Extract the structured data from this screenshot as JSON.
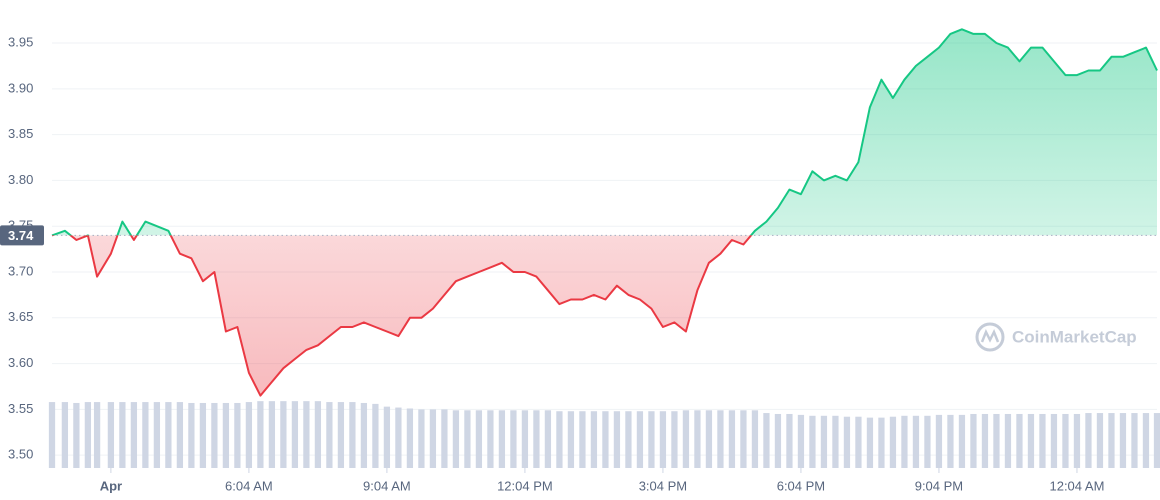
{
  "chart_data": {
    "type": "line",
    "baseline": 3.74,
    "baseline_label": "3.74",
    "watermark": "CoinMarketCap",
    "colors": {
      "up": "#16c784",
      "down": "#ea3943",
      "volume": "#cfd6e4"
    },
    "x": [
      -1.28,
      -1,
      -0.75,
      -0.5,
      -0.3,
      0,
      0.25,
      0.5,
      0.75,
      1,
      1.25,
      1.5,
      1.75,
      2,
      2.25,
      2.5,
      2.75,
      3,
      3.25,
      3.5,
      3.75,
      4,
      4.25,
      4.5,
      4.75,
      5,
      5.25,
      5.5,
      5.75,
      6,
      6.25,
      6.5,
      6.75,
      7,
      7.25,
      7.5,
      7.75,
      8,
      8.25,
      8.5,
      8.75,
      9,
      9.25,
      9.5,
      9.75,
      10,
      10.25,
      10.5,
      10.75,
      11,
      11.25,
      11.5,
      11.75,
      12,
      12.25,
      12.5,
      12.75,
      13,
      13.25,
      13.5,
      13.75,
      14,
      14.25,
      14.5,
      14.75,
      15,
      15.25,
      15.5,
      15.75,
      16,
      16.25,
      16.5,
      16.75,
      17,
      17.25,
      17.5,
      17.75,
      18,
      18.25,
      18.5,
      18.75,
      19,
      19.25,
      19.5,
      19.75,
      20,
      20.25,
      20.5,
      20.75,
      21,
      21.25,
      21.5,
      21.75,
      22,
      22.25,
      22.5,
      22.74
    ],
    "values": [
      3.74,
      3.745,
      3.735,
      3.74,
      3.695,
      3.72,
      3.755,
      3.735,
      3.755,
      3.75,
      3.745,
      3.72,
      3.715,
      3.69,
      3.7,
      3.635,
      3.64,
      3.59,
      3.565,
      3.58,
      3.595,
      3.605,
      3.615,
      3.62,
      3.63,
      3.64,
      3.64,
      3.645,
      3.64,
      3.635,
      3.63,
      3.65,
      3.65,
      3.66,
      3.675,
      3.69,
      3.695,
      3.7,
      3.705,
      3.71,
      3.7,
      3.7,
      3.695,
      3.68,
      3.665,
      3.67,
      3.67,
      3.675,
      3.67,
      3.685,
      3.675,
      3.67,
      3.66,
      3.64,
      3.645,
      3.635,
      3.68,
      3.71,
      3.72,
      3.735,
      3.73,
      3.745,
      3.755,
      3.77,
      3.79,
      3.785,
      3.81,
      3.8,
      3.805,
      3.8,
      3.82,
      3.88,
      3.91,
      3.89,
      3.91,
      3.925,
      3.935,
      3.945,
      3.96,
      3.965,
      3.96,
      3.96,
      3.95,
      3.945,
      3.93,
      3.945,
      3.945,
      3.93,
      3.915,
      3.915,
      3.92,
      3.92,
      3.935,
      3.935,
      3.94,
      3.945,
      3.92
    ],
    "volume": {
      "values": [
        3.558,
        3.558,
        3.557,
        3.558,
        3.558,
        3.558,
        3.558,
        3.558,
        3.558,
        3.558,
        3.558,
        3.558,
        3.557,
        3.557,
        3.557,
        3.557,
        3.557,
        3.558,
        3.559,
        3.559,
        3.559,
        3.559,
        3.559,
        3.559,
        3.558,
        3.558,
        3.558,
        3.557,
        3.556,
        3.553,
        3.552,
        3.551,
        3.55,
        3.55,
        3.55,
        3.549,
        3.549,
        3.549,
        3.549,
        3.549,
        3.549,
        3.549,
        3.549,
        3.549,
        3.548,
        3.548,
        3.548,
        3.548,
        3.548,
        3.548,
        3.548,
        3.548,
        3.548,
        3.548,
        3.548,
        3.549,
        3.549,
        3.549,
        3.549,
        3.549,
        3.549,
        3.549,
        3.546,
        3.545,
        3.545,
        3.544,
        3.543,
        3.543,
        3.543,
        3.542,
        3.542,
        3.541,
        3.541,
        3.542,
        3.543,
        3.543,
        3.543,
        3.544,
        3.544,
        3.544,
        3.545,
        3.545,
        3.545,
        3.545,
        3.545,
        3.545,
        3.545,
        3.545,
        3.545,
        3.545,
        3.546,
        3.546,
        3.546,
        3.546,
        3.546,
        3.546,
        3.546
      ]
    },
    "xlim": [
      -1.28,
      22.74
    ],
    "xticks": [
      {
        "value": 0,
        "label": "Apr"
      },
      {
        "value": 3,
        "label": "6:04 AM"
      },
      {
        "value": 6,
        "label": "9:04 AM"
      },
      {
        "value": 9,
        "label": "12:04 PM"
      },
      {
        "value": 12,
        "label": "3:04 PM"
      },
      {
        "value": 15,
        "label": "6:04 PM"
      },
      {
        "value": 18,
        "label": "9:04 PM"
      },
      {
        "value": 21,
        "label": "12:04 AM"
      }
    ],
    "ylim": [
      3.486,
      3.997
    ],
    "yticks": [
      {
        "value": 3.5,
        "label": "3.50"
      },
      3.55,
      {
        "value": 3.6,
        "label": "3.60"
      },
      3.65,
      {
        "value": 3.7,
        "label": "3.70"
      },
      3.75,
      {
        "value": 3.8,
        "label": "3.80"
      },
      3.85,
      {
        "value": 3.9,
        "label": "3.90"
      },
      3.95
    ],
    "grid": true
  }
}
